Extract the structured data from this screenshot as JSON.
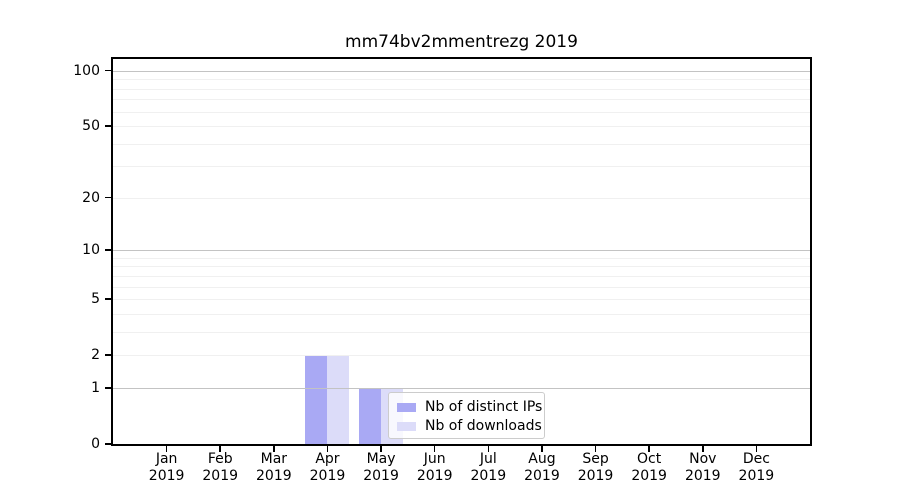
{
  "chart_data": {
    "type": "bar",
    "title": "mm74bv2mmentrezg 2019",
    "categories": [
      "Jan",
      "Feb",
      "Mar",
      "Apr",
      "May",
      "Jun",
      "Jul",
      "Aug",
      "Sep",
      "Oct",
      "Nov",
      "Dec"
    ],
    "category_year": "2019",
    "series": [
      {
        "name": "Nb of distinct IPs",
        "color": "#a9a9f4",
        "values": [
          0,
          0,
          0,
          2,
          1,
          0,
          0,
          0,
          0,
          0,
          0,
          0
        ]
      },
      {
        "name": "Nb of downloads",
        "color": "#dcdcf9",
        "values": [
          0,
          0,
          0,
          2,
          1,
          0,
          0,
          0,
          0,
          0,
          0,
          0
        ]
      }
    ],
    "yscale": "log1p",
    "ylim": [
      0,
      116
    ],
    "yticks": [
      {
        "label": "0",
        "value": 0
      },
      {
        "label": "1",
        "value": 1
      },
      {
        "label": "2",
        "value": 2
      },
      {
        "label": "5",
        "value": 5
      },
      {
        "label": "10",
        "value": 10
      },
      {
        "label": "20",
        "value": 20
      },
      {
        "label": "50",
        "value": 50
      },
      {
        "label": "100",
        "value": 100
      }
    ],
    "grid": {
      "major_values": [
        1,
        10,
        100
      ],
      "minor_values": [
        2,
        3,
        4,
        5,
        6,
        7,
        8,
        9,
        20,
        30,
        40,
        50,
        60,
        70,
        80,
        90
      ],
      "major_color": "#c3c3c3",
      "minor_color": "#f0f0f0"
    },
    "legend_position": "lower center",
    "axis_color": "#000000",
    "text_color": "#000000",
    "background_color": "#ffffff"
  }
}
